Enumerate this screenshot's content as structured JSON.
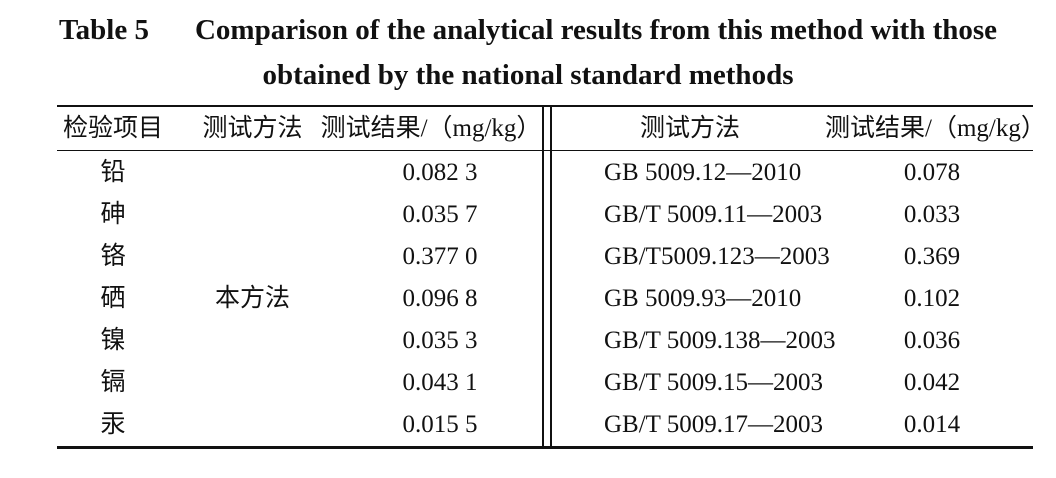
{
  "title": {
    "label": "Table 5",
    "text": "Comparison of the analytical results from this method with those obtained by the national standard methods"
  },
  "table": {
    "headers": [
      "检验项目",
      "测试方法",
      "测试结果/（mg/kg）",
      "测试方法",
      "测试结果/（mg/kg）"
    ],
    "method": "本方法",
    "rows": [
      [
        "铅",
        "0.082 3",
        "GB 5009.12—2010",
        "0.078"
      ],
      [
        "砷",
        "0.035 7",
        "GB/T 5009.11—2003",
        "0.033"
      ],
      [
        "铬",
        "0.377 0",
        "GB/T5009.123—2003",
        "0.369"
      ],
      [
        "硒",
        "0.096 8",
        "GB 5009.93—2010",
        "0.102"
      ],
      [
        "镍",
        "0.035 3",
        "GB/T 5009.138—2003",
        "0.036"
      ],
      [
        "镉",
        "0.043 1",
        "GB/T 5009.15—2003",
        "0.042"
      ],
      [
        "汞",
        "0.015 5",
        "GB/T 5009.17—2003",
        "0.014"
      ]
    ]
  }
}
